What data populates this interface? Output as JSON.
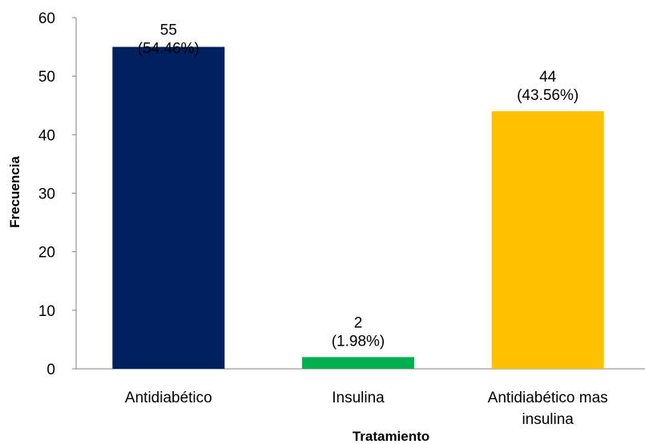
{
  "chart_data": {
    "type": "bar",
    "title": "",
    "xlabel": "Tratamiento",
    "ylabel": "Frecuencia",
    "ylim": [
      0,
      60
    ],
    "yticks": [
      0,
      10,
      20,
      30,
      40,
      50,
      60
    ],
    "grid": false,
    "legend": "none",
    "categories": [
      [
        "Antidiabético"
      ],
      [
        "Insulina"
      ],
      [
        "Antidiabético mas",
        "insulina"
      ]
    ],
    "values": [
      55,
      2,
      44
    ],
    "data_labels": [
      [
        "55",
        "(54.46%)"
      ],
      [
        "2",
        "(1.98%)"
      ],
      [
        "44",
        "(43.56%)"
      ]
    ],
    "colors": [
      "#002060",
      "#00B050",
      "#FFC000"
    ]
  }
}
